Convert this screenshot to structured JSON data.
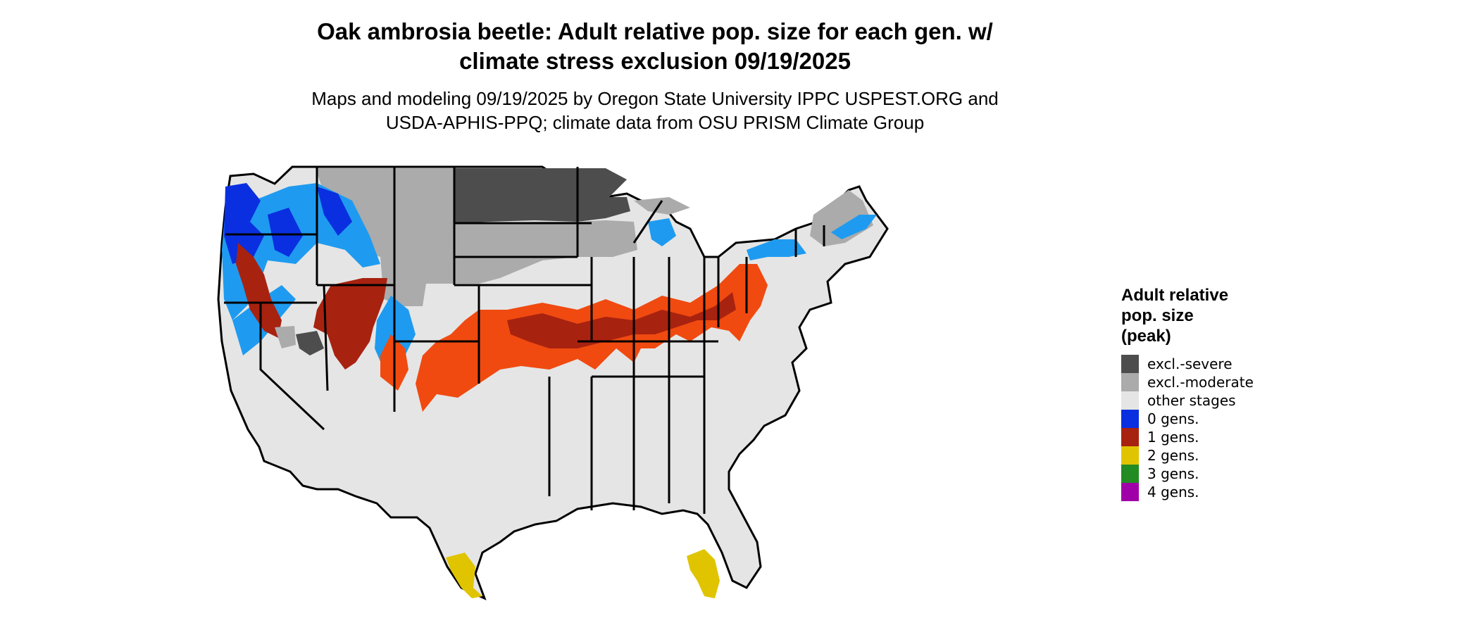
{
  "title_line1": "Oak ambrosia beetle: Adult relative pop. size for each gen. w/",
  "title_line2": "climate stress exclusion 09/19/2025",
  "subtitle_line1": "Maps and modeling 09/19/2025 by Oregon State University IPPC USPEST.ORG and",
  "subtitle_line2": "USDA-APHIS-PPQ; climate data from OSU PRISM Climate Group",
  "legend": {
    "title_line1": "Adult relative",
    "title_line2": "pop. size",
    "title_line3": "(peak)",
    "items": [
      {
        "label": "excl.-severe",
        "color": "#4d4d4d"
      },
      {
        "label": "excl.-moderate",
        "color": "#ababab"
      },
      {
        "label": "other stages",
        "color": "#e5e5e5"
      },
      {
        "label": "0 gens.",
        "color": "#0a2fe0"
      },
      {
        "label": "1 gens.",
        "color": "#a82210"
      },
      {
        "label": "2 gens.",
        "color": "#e0c400"
      },
      {
        "label": "3 gens.",
        "color": "#228b22"
      },
      {
        "label": "4 gens.",
        "color": "#a000a8"
      }
    ]
  },
  "map_colors": {
    "other_stages": "#e5e5e5",
    "excl_severe": "#4d4d4d",
    "excl_moderate": "#ababab",
    "zero_gens_dark": "#0a2fe0",
    "zero_gens_light": "#1e9bf0",
    "one_gens_dark": "#a82210",
    "one_gens_orange": "#f04a10",
    "two_gens": "#e0c400",
    "borders": "#000000"
  }
}
